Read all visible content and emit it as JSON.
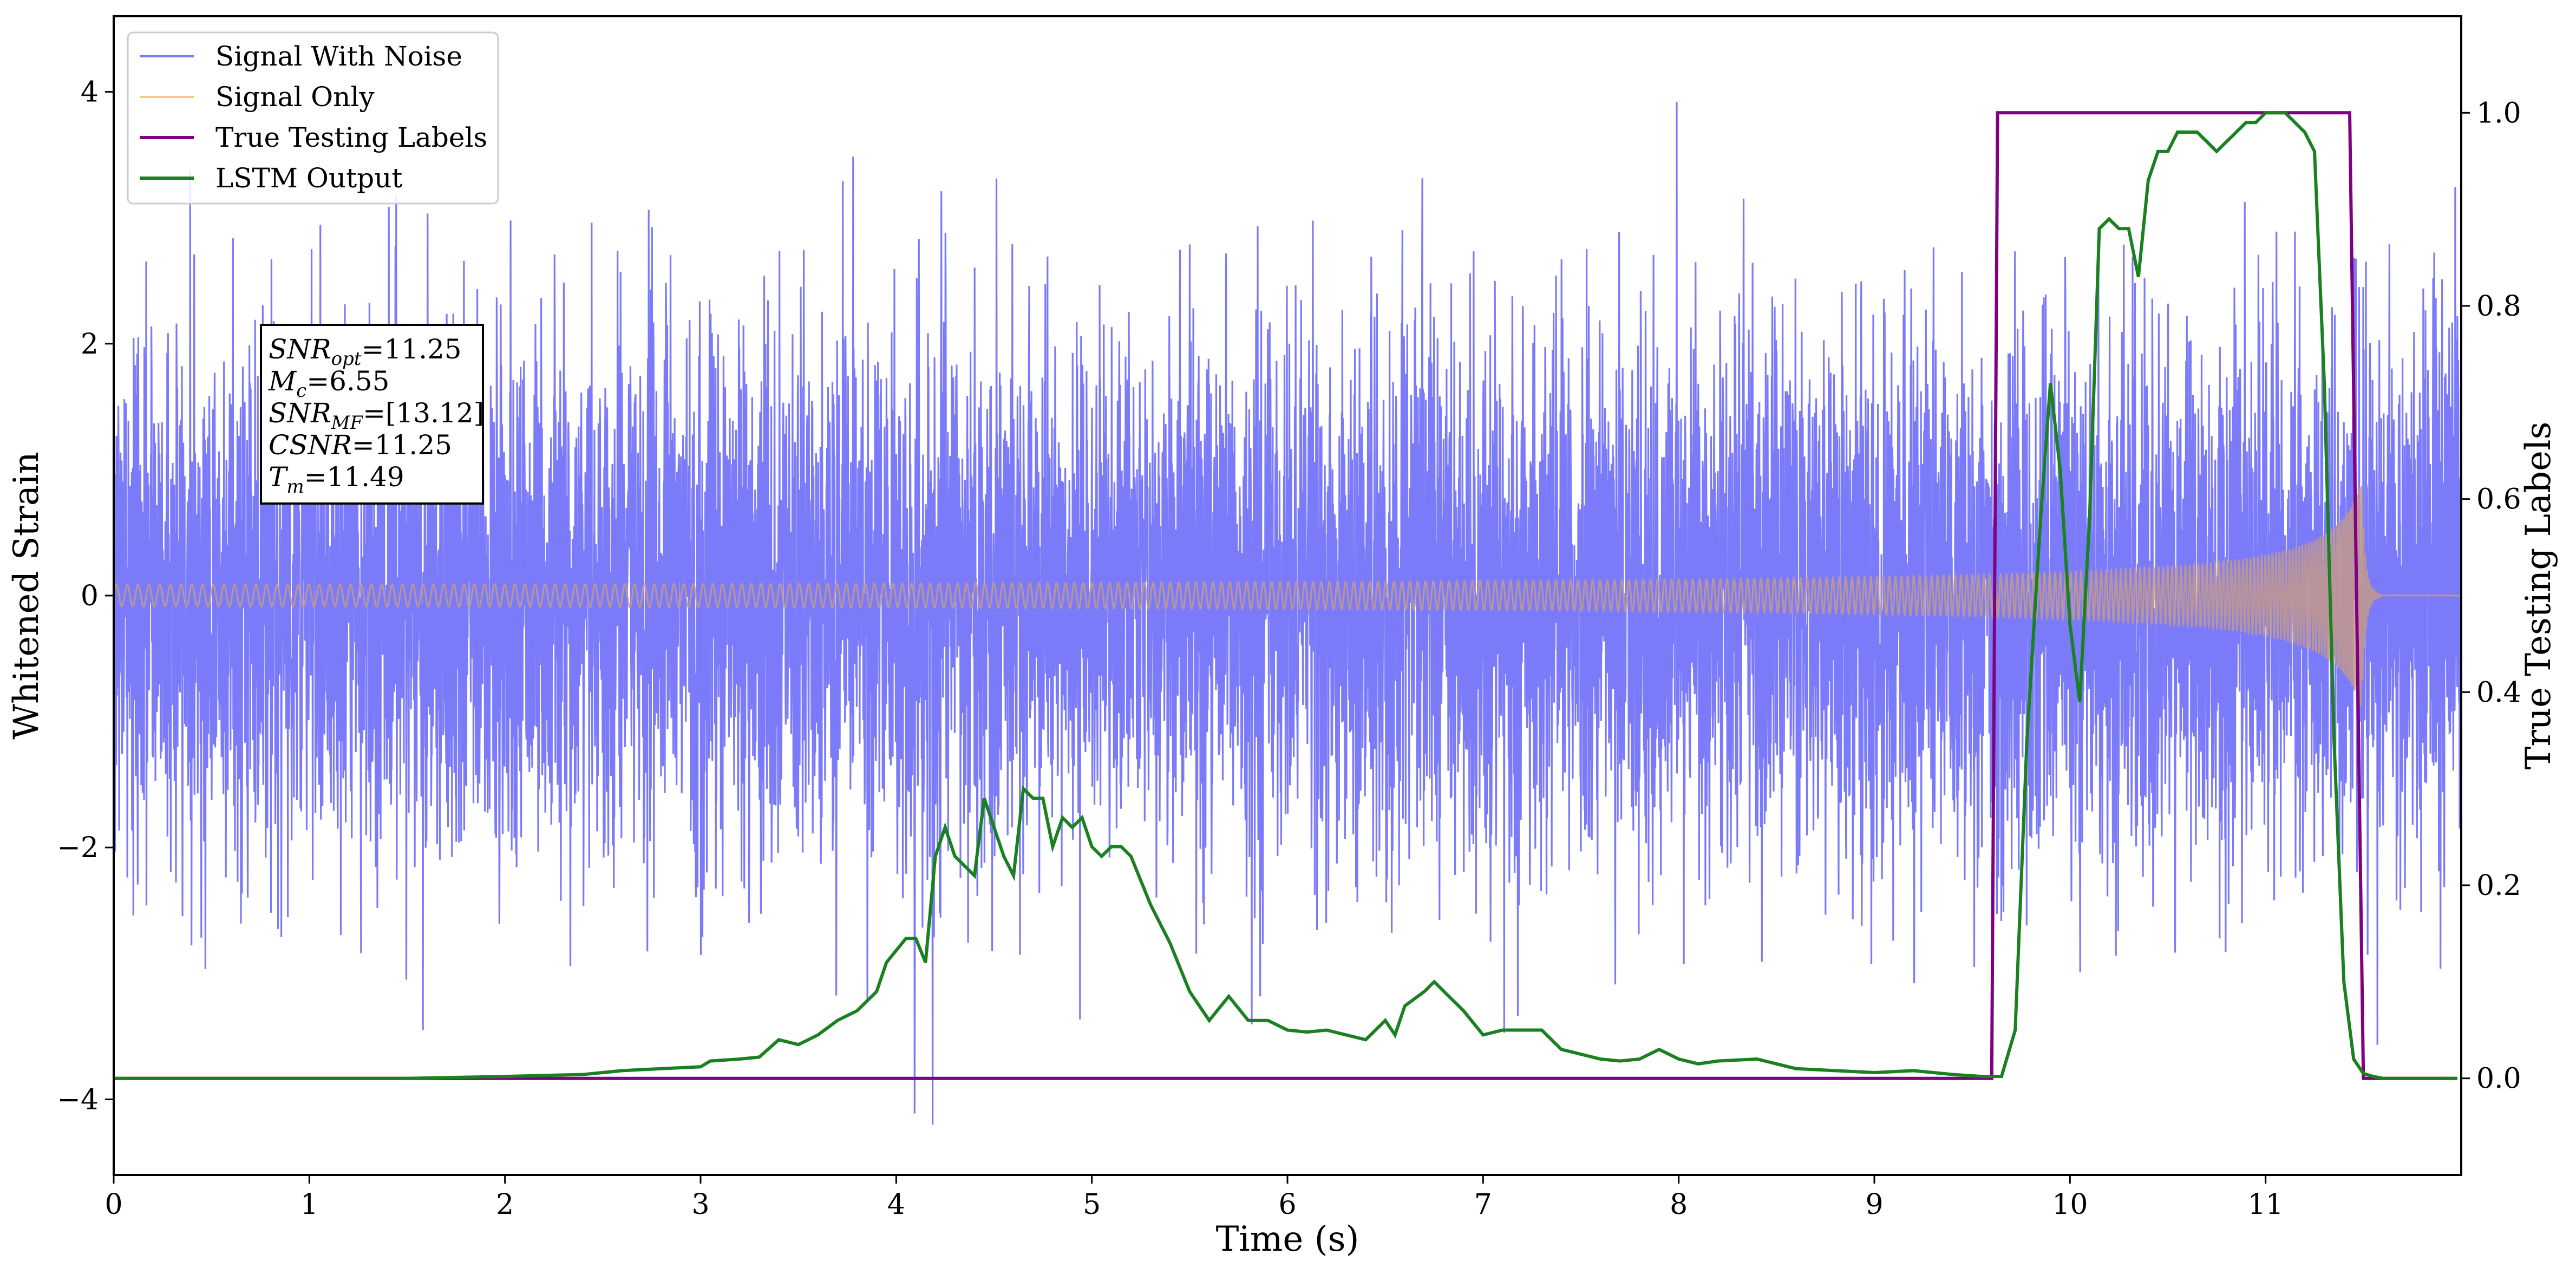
{
  "chart_data": {
    "type": "line",
    "xlabel": "Time (s)",
    "ylabel": "Whitened Strain",
    "y2label": "True Testing Labels",
    "xlim": [
      0,
      12.0
    ],
    "ylim": [
      -4.6,
      4.6
    ],
    "y2lim": [
      -0.1,
      1.1
    ],
    "x_ticks": [
      0,
      1,
      2,
      3,
      4,
      5,
      6,
      7,
      8,
      9,
      10,
      11
    ],
    "x_tick_labels": [
      "0",
      "1",
      "2",
      "3",
      "4",
      "5",
      "6",
      "7",
      "8",
      "9",
      "10",
      "11"
    ],
    "y_ticks": [
      -4,
      -2,
      0,
      2,
      4
    ],
    "y_tick_labels": [
      "−4",
      "−2",
      "0",
      "2",
      "4"
    ],
    "y2_ticks": [
      0.0,
      0.2,
      0.4,
      0.6,
      0.8,
      1.0
    ],
    "y2_tick_labels": [
      "0.0",
      "0.2",
      "0.4",
      "0.6",
      "0.8",
      "1.0"
    ],
    "grid": false,
    "legend_position": "top-left",
    "legend": [
      "Signal With Noise",
      "Signal Only",
      "True Testing Labels",
      "LSTM Output"
    ],
    "colors": {
      "noise": "#7b7bfa",
      "signal": "#f7c77a",
      "labels": "#800080",
      "lstm": "#1a8020",
      "overlap": "#c49a8a"
    },
    "annotation": {
      "lines": [
        {
          "var": "SNR",
          "sub": "opt",
          "value": "=11.25"
        },
        {
          "var": "M",
          "sub": "c",
          "value": "=6.55"
        },
        {
          "var": "SNR",
          "sub": "MF",
          "value": "=[13.12]"
        },
        {
          "var": "CSNR",
          "sub": "",
          "value": "=11.25"
        },
        {
          "var": "T",
          "sub": "m",
          "value": "=11.49"
        }
      ]
    },
    "series": [
      {
        "name": "Signal With Noise",
        "axis": "left",
        "kind": "noise",
        "description": "dense noise with std ~1, peaks to ~±4",
        "x_range": [
          0,
          12.0
        ]
      },
      {
        "name": "Signal Only",
        "axis": "left",
        "kind": "chirp",
        "x_range": [
          0,
          11.6
        ],
        "amplitude_start": 0.05,
        "amplitude_end": 0.9,
        "merger_time": 11.49
      },
      {
        "name": "True Testing Labels",
        "axis": "right",
        "x": [
          0.0,
          9.6,
          9.63,
          11.43,
          11.5,
          11.98
        ],
        "y": [
          0.0,
          0.0,
          1.0,
          1.0,
          0.0,
          0.0
        ]
      },
      {
        "name": "LSTM Output",
        "axis": "right",
        "x": [
          0.0,
          0.5,
          1.0,
          1.5,
          2.0,
          2.4,
          2.6,
          2.8,
          3.0,
          3.05,
          3.2,
          3.3,
          3.4,
          3.5,
          3.6,
          3.7,
          3.8,
          3.9,
          3.95,
          4.05,
          4.1,
          4.15,
          4.2,
          4.25,
          4.3,
          4.35,
          4.4,
          4.45,
          4.5,
          4.55,
          4.6,
          4.65,
          4.7,
          4.75,
          4.8,
          4.85,
          4.9,
          4.95,
          5.0,
          5.05,
          5.1,
          5.15,
          5.2,
          5.3,
          5.4,
          5.5,
          5.6,
          5.7,
          5.8,
          5.9,
          6.0,
          6.1,
          6.2,
          6.3,
          6.4,
          6.5,
          6.55,
          6.6,
          6.7,
          6.75,
          6.8,
          6.9,
          7.0,
          7.1,
          7.2,
          7.3,
          7.4,
          7.5,
          7.6,
          7.7,
          7.8,
          7.9,
          8.0,
          8.1,
          8.2,
          8.4,
          8.6,
          8.8,
          9.0,
          9.2,
          9.4,
          9.55,
          9.65,
          9.72,
          9.78,
          9.85,
          9.9,
          9.95,
          10.0,
          10.05,
          10.1,
          10.15,
          10.2,
          10.25,
          10.3,
          10.35,
          10.4,
          10.45,
          10.5,
          10.55,
          10.6,
          10.65,
          10.7,
          10.75,
          10.8,
          10.85,
          10.9,
          10.95,
          11.0,
          11.05,
          11.1,
          11.15,
          11.2,
          11.25,
          11.3,
          11.35,
          11.4,
          11.45,
          11.5,
          11.55,
          11.6,
          11.7,
          11.8,
          11.9,
          11.98
        ],
        "y": [
          0.0,
          0.0,
          0.0,
          0.0,
          0.002,
          0.004,
          0.008,
          0.01,
          0.012,
          0.018,
          0.02,
          0.022,
          0.04,
          0.035,
          0.045,
          0.06,
          0.07,
          0.09,
          0.12,
          0.145,
          0.145,
          0.12,
          0.23,
          0.26,
          0.23,
          0.22,
          0.21,
          0.29,
          0.26,
          0.23,
          0.21,
          0.3,
          0.29,
          0.29,
          0.24,
          0.27,
          0.26,
          0.27,
          0.24,
          0.23,
          0.24,
          0.24,
          0.23,
          0.18,
          0.14,
          0.09,
          0.06,
          0.085,
          0.06,
          0.06,
          0.05,
          0.048,
          0.05,
          0.045,
          0.04,
          0.06,
          0.045,
          0.075,
          0.09,
          0.1,
          0.09,
          0.07,
          0.045,
          0.05,
          0.05,
          0.05,
          0.03,
          0.025,
          0.02,
          0.018,
          0.02,
          0.03,
          0.02,
          0.015,
          0.018,
          0.02,
          0.01,
          0.008,
          0.006,
          0.008,
          0.004,
          0.002,
          0.002,
          0.05,
          0.35,
          0.58,
          0.72,
          0.63,
          0.47,
          0.39,
          0.58,
          0.88,
          0.89,
          0.88,
          0.88,
          0.83,
          0.93,
          0.96,
          0.96,
          0.98,
          0.98,
          0.98,
          0.97,
          0.96,
          0.97,
          0.98,
          0.99,
          0.99,
          1.0,
          1.0,
          1.0,
          0.99,
          0.98,
          0.96,
          0.72,
          0.35,
          0.1,
          0.02,
          0.005,
          0.002,
          0.0,
          0.0,
          0.0,
          0.0,
          0.0
        ]
      }
    ]
  }
}
